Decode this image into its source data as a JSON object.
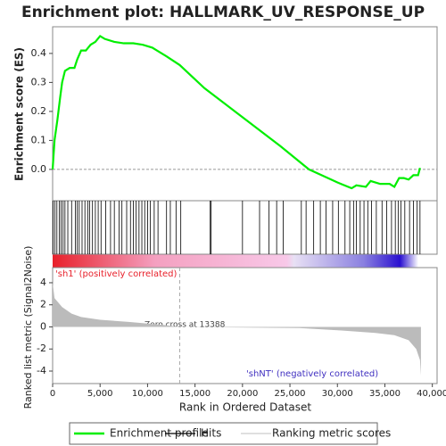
{
  "chart_data": [
    {
      "type": "line",
      "title": "Enrichment plot: HALLMARK_UV_RESPONSE_UP",
      "ylabel": "Enrichment score (ES)",
      "xlim": [
        0,
        40500
      ],
      "ylim": [
        -0.108,
        0.492
      ],
      "yticks": [
        {
          "value": 0,
          "label": "0.0"
        },
        0.1,
        0.2,
        0.3,
        0.4
      ],
      "series": [
        {
          "name": "Enrichment profile",
          "color": "#00ee00",
          "x": [
            0,
            200,
            500,
            800,
            1000,
            1300,
            1800,
            2300,
            2600,
            3000,
            3500,
            4000,
            4500,
            5000,
            5500,
            6500,
            7500,
            8500,
            9500,
            10500,
            11000,
            12000,
            13388,
            16000,
            20000,
            24000,
            27000,
            29000,
            30000,
            31500,
            32000,
            33000,
            33500,
            34500,
            35500,
            36000,
            36500,
            37000,
            37500,
            38000,
            38500,
            38700
          ],
          "values": [
            0,
            0.1,
            0.17,
            0.25,
            0.3,
            0.34,
            0.35,
            0.35,
            0.38,
            0.41,
            0.41,
            0.43,
            0.44,
            0.46,
            0.45,
            0.44,
            0.435,
            0.435,
            0.43,
            0.42,
            0.41,
            0.39,
            0.36,
            0.28,
            0.18,
            0.08,
            0,
            -0.03,
            -0.045,
            -0.065,
            -0.055,
            -0.06,
            -0.04,
            -0.05,
            -0.05,
            -0.06,
            -0.03,
            -0.03,
            -0.035,
            -0.02,
            -0.02,
            0.005
          ]
        }
      ]
    },
    {
      "type": "rug",
      "xlim": [
        0,
        40500
      ],
      "series": [
        {
          "name": "Hits",
          "color": "#000000",
          "x": [
            50,
            250,
            450,
            700,
            900,
            1100,
            1300,
            1600,
            2000,
            2400,
            2600,
            2800,
            3100,
            3400,
            3700,
            3900,
            4200,
            4500,
            4800,
            5100,
            5600,
            6100,
            6500,
            7000,
            7300,
            7800,
            8200,
            8500,
            8800,
            9100,
            9400,
            9700,
            10000,
            10300,
            10700,
            11100,
            12000,
            12400,
            13000,
            13500,
            16600,
            16700,
            20000,
            21800,
            22800,
            23600,
            24300,
            26200,
            26700,
            27500,
            28200,
            28800,
            29500,
            30100,
            30800,
            31300,
            31700,
            32000,
            32400,
            32800,
            33200,
            33600,
            34100,
            34700,
            35200,
            35700,
            36100,
            36400,
            36700,
            37100,
            37600,
            38000,
            38400,
            38700
          ]
        }
      ]
    },
    {
      "type": "area",
      "xlabel": "Rank in Ordered Dataset",
      "ylabel": "Ranked list metric (Signal2Noise)",
      "xlim": [
        0,
        40500
      ],
      "ylim": [
        -5.13,
        5.37
      ],
      "yticks": [
        4,
        2,
        0,
        -2,
        -4
      ],
      "xticks": [
        0,
        {
          "value": 5000,
          "label": "5,000"
        },
        {
          "value": 10000,
          "label": "10,000"
        },
        {
          "value": 15000,
          "label": "15,000"
        },
        {
          "value": 20000,
          "label": "20,000"
        },
        {
          "value": 25000,
          "label": "25,000"
        },
        {
          "value": 30000,
          "label": "30,000"
        },
        {
          "value": 35000,
          "label": "35,000"
        },
        {
          "value": 40000,
          "label": "40,000"
        }
      ],
      "annotations": [
        "'sh1' (positively correlated)",
        "Zero cross at 13388",
        "'shNT' (negatively correlated)"
      ],
      "zero_cross": 13388,
      "series": [
        {
          "name": "Ranking metric scores",
          "color": "#bbbbbb",
          "x": [
            0,
            200,
            500,
            1000,
            2000,
            3000,
            5000,
            8000,
            10000,
            12000,
            13388,
            26000,
            30000,
            34000,
            36000,
            37500,
            38300,
            38700,
            38800
          ],
          "values": [
            4.0,
            2.6,
            2.3,
            1.8,
            1.2,
            0.9,
            0.65,
            0.45,
            0.3,
            0.15,
            0,
            -0.1,
            -0.3,
            -0.55,
            -0.75,
            -1.2,
            -2.0,
            -3.0,
            -4.4
          ]
        }
      ]
    }
  ]
}
